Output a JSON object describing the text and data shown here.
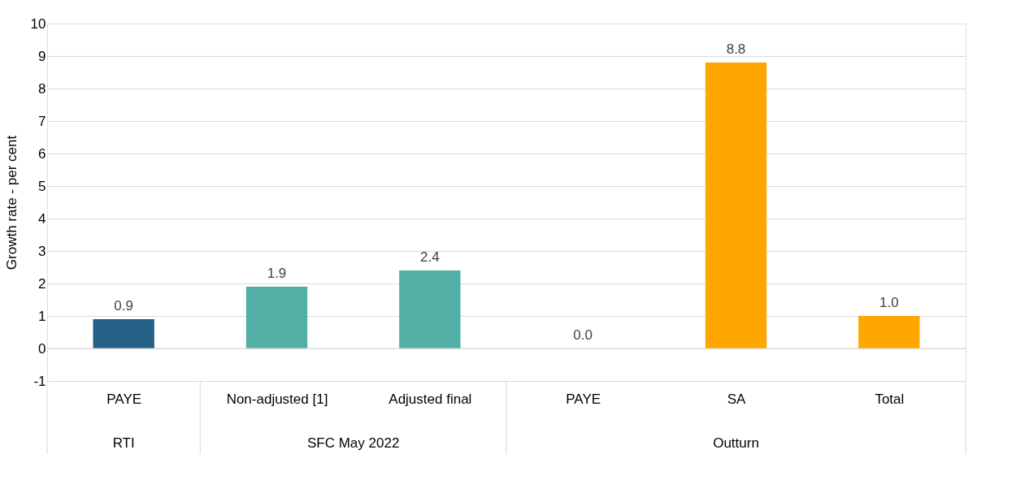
{
  "chart_data": {
    "type": "bar",
    "ylabel": "Growth rate - per cent",
    "categories": [
      "PAYE",
      "Non-adjusted [1]",
      "Adjusted final",
      "PAYE",
      "SA",
      "Total"
    ],
    "values": [
      0.9,
      1.9,
      2.4,
      0.0,
      8.8,
      1.0
    ],
    "colors": [
      "#255e87",
      "#52afa5",
      "#52afa5",
      "#ffa600",
      "#ffa600",
      "#ffa600"
    ],
    "value_labels": [
      "0.9",
      "1.9",
      "2.4",
      "0.0",
      "8.8",
      "1.0"
    ],
    "ylim": [
      -1,
      10
    ],
    "yticks": [
      -1,
      0,
      1,
      2,
      3,
      4,
      5,
      6,
      7,
      8,
      9,
      10
    ],
    "grid": "y",
    "annotations": [
      "RTI",
      "SFC May 2022",
      "Outturn"
    ]
  }
}
